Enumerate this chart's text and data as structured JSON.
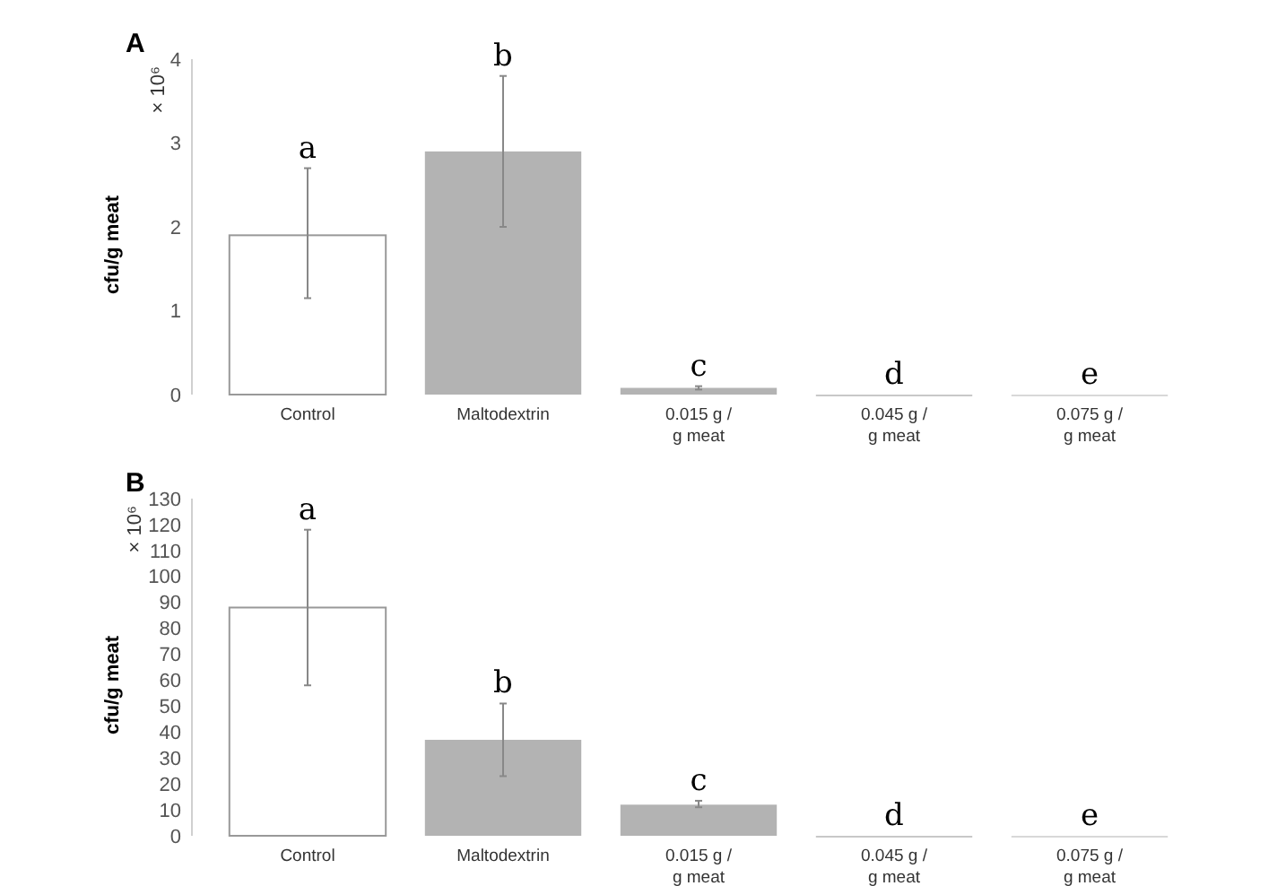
{
  "chart_data": [
    {
      "type": "bar",
      "title": "A",
      "ylabel": "cfu/g meat",
      "categories": [
        "Control",
        "Maltodextrin",
        "0.015 g / g meat",
        "0.045 g / g meat",
        "0.075 g / g meat"
      ],
      "values": [
        1.9,
        2.9,
        0.08,
        0,
        0
      ],
      "colors": [
        "#ffffff",
        "#b3b3b3",
        "#b3b3b3",
        "#c8c8c8",
        "#d8d8d8"
      ],
      "errors": [
        [
          1.15,
          2.7
        ],
        [
          2.0,
          3.8
        ],
        [
          0.06,
          0.1
        ],
        null,
        null
      ],
      "ylim": [
        0,
        4
      ],
      "yticks": [
        0,
        1,
        2,
        3,
        4
      ],
      "annotations": [
        "× 10⁶",
        {
          "text": "a",
          "x": "Control",
          "y": 2.7
        },
        {
          "text": "b",
          "x": "Maltodextrin",
          "y": 3.8
        },
        {
          "text": "c",
          "x": "0.015 g / g meat",
          "y": 0.1
        },
        {
          "text": "d",
          "x": "0.045 g / g meat",
          "y": 0
        },
        {
          "text": "e",
          "x": "0.075 g / g meat",
          "y": 0
        }
      ]
    },
    {
      "type": "bar",
      "title": "B",
      "ylabel": "cfu/g meat",
      "categories": [
        "Control",
        "Maltodextrin",
        "0.015 g / g meat",
        "0.045 g / g meat",
        "0.075 g / g meat"
      ],
      "values": [
        88,
        37,
        12,
        0,
        0
      ],
      "colors": [
        "#ffffff",
        "#b3b3b3",
        "#b3b3b3",
        "#c8c8c8",
        "#d8d8d8"
      ],
      "errors": [
        [
          58,
          118
        ],
        [
          23,
          51
        ],
        [
          11,
          13.5
        ],
        null,
        null
      ],
      "ylim": [
        0,
        130
      ],
      "yticks": [
        0,
        10,
        20,
        30,
        40,
        50,
        60,
        70,
        80,
        90,
        100,
        110,
        120,
        130
      ],
      "annotations": [
        "× 10⁶",
        {
          "text": "a",
          "x": "Control",
          "y": 118
        },
        {
          "text": "b",
          "x": "Maltodextrin",
          "y": 51
        },
        {
          "text": "c",
          "x": "0.015 g / g meat",
          "y": 13.5
        },
        {
          "text": "d",
          "x": "0.045 g / g meat",
          "y": 0
        },
        {
          "text": "e",
          "x": "0.075 g / g meat",
          "y": 0
        }
      ]
    }
  ]
}
